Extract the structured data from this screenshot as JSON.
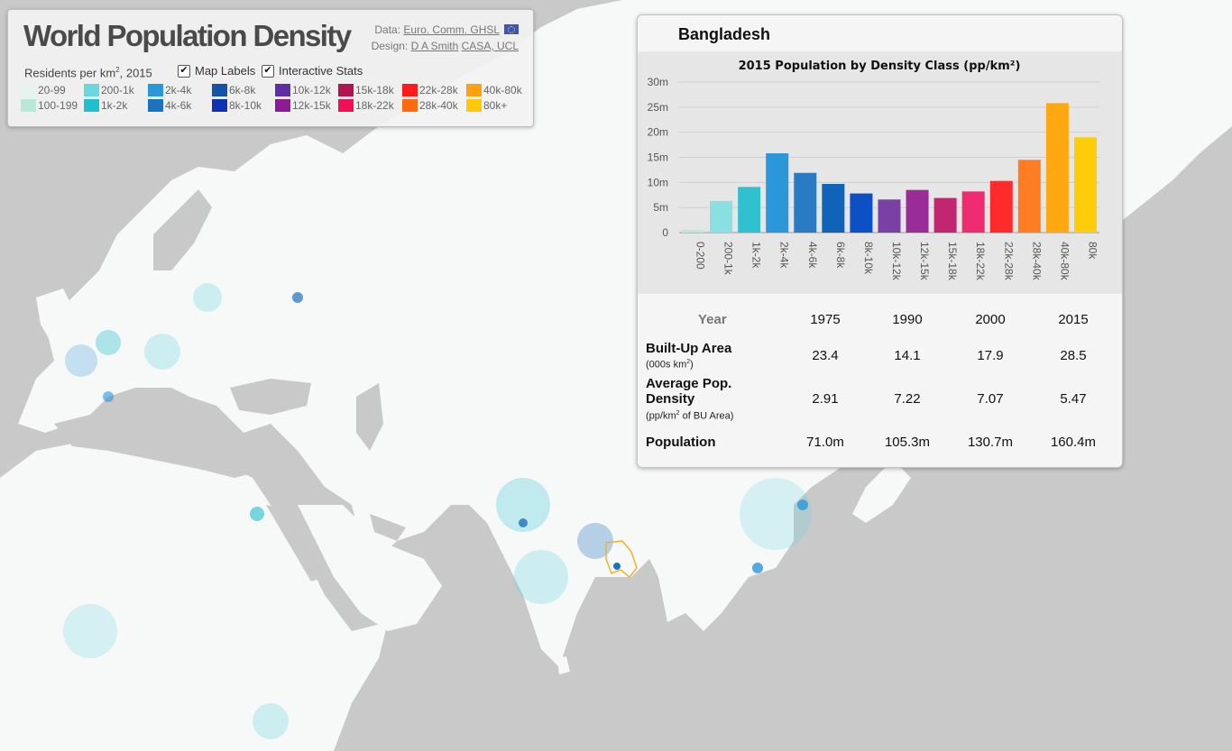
{
  "app": {
    "title": "World Population Density",
    "credits": {
      "data_prefix": "Data:",
      "data_link": "Euro. Comm. GHSL",
      "design_prefix": "Design:",
      "design_link_1": "D A Smith",
      "design_link_2": "CASA, UCL"
    }
  },
  "legend": {
    "residents_label": "Residents per km",
    "residents_sup": "2",
    "residents_year": ", 2015",
    "map_labels_label": "Map Labels",
    "map_labels_checked": true,
    "interactive_stats_label": "Interactive Stats",
    "interactive_stats_checked": true,
    "classes": [
      {
        "label": "20-99",
        "color": "#e5f5ee"
      },
      {
        "label": "100-199",
        "color": "#b5ead9"
      },
      {
        "label": "200-1k",
        "color": "#6cd6de"
      },
      {
        "label": "1k-2k",
        "color": "#1fbfd0"
      },
      {
        "label": "2k-4k",
        "color": "#2b96d8"
      },
      {
        "label": "4k-6k",
        "color": "#1d72c0"
      },
      {
        "label": "6k-8k",
        "color": "#1454a8"
      },
      {
        "label": "8k-10k",
        "color": "#0d32b2"
      },
      {
        "label": "10k-12k",
        "color": "#5d2fa3"
      },
      {
        "label": "12k-15k",
        "color": "#8c1c94"
      },
      {
        "label": "15k-18k",
        "color": "#b3134e"
      },
      {
        "label": "18k-22k",
        "color": "#ee0f55"
      },
      {
        "label": "22k-28k",
        "color": "#ff1a1a"
      },
      {
        "label": "28k-40k",
        "color": "#ff6a10"
      },
      {
        "label": "40k-80k",
        "color": "#ffa010"
      },
      {
        "label": "80k+",
        "color": "#ffc80a"
      }
    ]
  },
  "stats": {
    "country": "Bangladesh",
    "table": {
      "year_label": "Year",
      "years": [
        "1975",
        "1990",
        "2000",
        "2015"
      ],
      "built_up_label": "Built-Up Area",
      "built_up_sub": "(000s km",
      "built_up_sup": "2",
      "built_up_sub_end": ")",
      "built_up_values": [
        "23.4",
        "14.1",
        "17.9",
        "28.5"
      ],
      "density_label_1": "Average Pop.",
      "density_label_2": "Density",
      "density_sub": "(pp/km",
      "density_sup": "2",
      "density_sub_end": " of BU Area)",
      "density_values": [
        "2.91",
        "7.22",
        "7.07",
        "5.47"
      ],
      "population_label": "Population",
      "population_values": [
        "71.0m",
        "105.3m",
        "130.7m",
        "160.4m"
      ]
    }
  },
  "chart_data": {
    "type": "bar",
    "title": "2015 Population by Density Class (pp/km²)",
    "categories": [
      "0-200",
      "200-1k",
      "1k-2k",
      "2k-4k",
      "4k-6k",
      "6k-8k",
      "8k-10k",
      "10k-12k",
      "12k-15k",
      "15k-18k",
      "18k-22k",
      "22k-28k",
      "28k-40k",
      "40k-80k",
      "80k"
    ],
    "values": [
      0.5,
      6.3,
      9.1,
      15.8,
      11.9,
      9.7,
      7.8,
      6.6,
      8.5,
      6.9,
      8.2,
      10.3,
      14.5,
      25.8,
      19.0
    ],
    "colors": [
      "#b5ead9",
      "#8adfe2",
      "#2fc1cf",
      "#2b96d8",
      "#2a7bc2",
      "#0f63b8",
      "#0d4fc4",
      "#7b40a6",
      "#9b2b98",
      "#c22670",
      "#ef2c6f",
      "#ff2a2a",
      "#ff7d22",
      "#ffa812",
      "#ffcc0a"
    ],
    "y_ticks": [
      "0",
      "5m",
      "10m",
      "15m",
      "20m",
      "25m",
      "30m"
    ],
    "ylim": [
      0,
      30
    ],
    "y_unit": "millions",
    "grid": true
  }
}
